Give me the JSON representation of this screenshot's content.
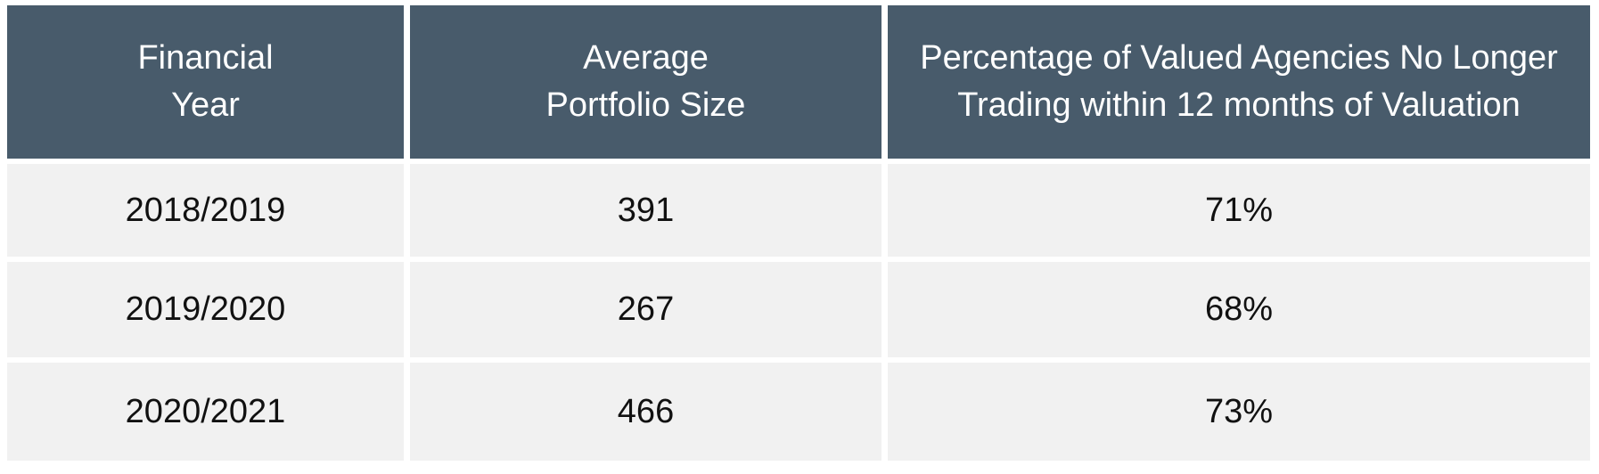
{
  "chart_data": {
    "type": "table",
    "columns": [
      [
        "Financial",
        "Year"
      ],
      [
        "Average",
        "Portfolio Size"
      ],
      [
        "Percentage of Valued Agencies No Longer",
        "Trading within 12 months of Valuation"
      ]
    ],
    "rows": [
      [
        "2018/2019",
        "391",
        "71%"
      ],
      [
        "2019/2020",
        "267",
        "68%"
      ],
      [
        "2020/2021",
        "466",
        "73%"
      ]
    ]
  },
  "colors": {
    "header_bg": "#485b6b",
    "header_text": "#ffffff",
    "cell_bg": "#f1f1f1",
    "cell_text": "#111111"
  }
}
